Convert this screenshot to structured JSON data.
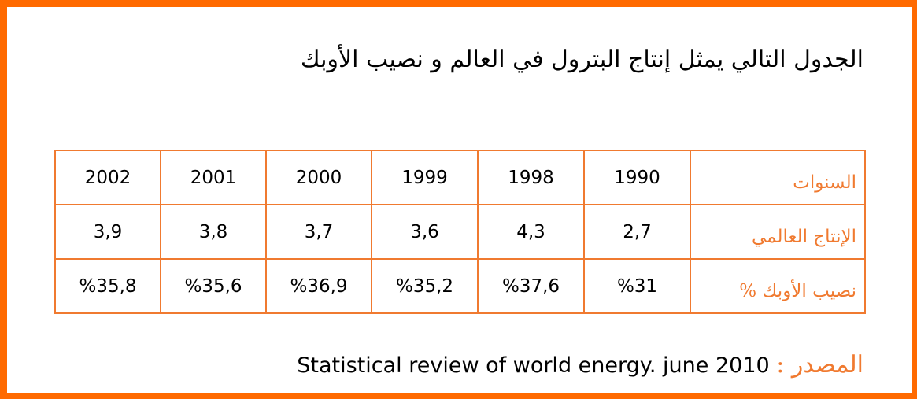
{
  "colors": {
    "accent": "#f07a30",
    "frame": "#ff6a00",
    "text": "#000000"
  },
  "title": "الجدول التالي يمثل إنتاج البترول في العالم و نصيب الأوبك",
  "table": {
    "rows": [
      {
        "label": "السنوات",
        "values": [
          "1990",
          "1998",
          "1999",
          "2000",
          "2001",
          "2002"
        ]
      },
      {
        "label": "الإنتاج العالمي",
        "values": [
          "2,7",
          "4,3",
          "3,6",
          "3,7",
          "3,8",
          "3,9"
        ]
      },
      {
        "label": "نصيب الأوبك %",
        "values": [
          "%31",
          "%37,6",
          "%35,2",
          "%36,9",
          "%35,6",
          "%35,8"
        ]
      }
    ]
  },
  "source": {
    "label": "المصدر :",
    "text": "Statistical review of world energy. june 2010"
  }
}
